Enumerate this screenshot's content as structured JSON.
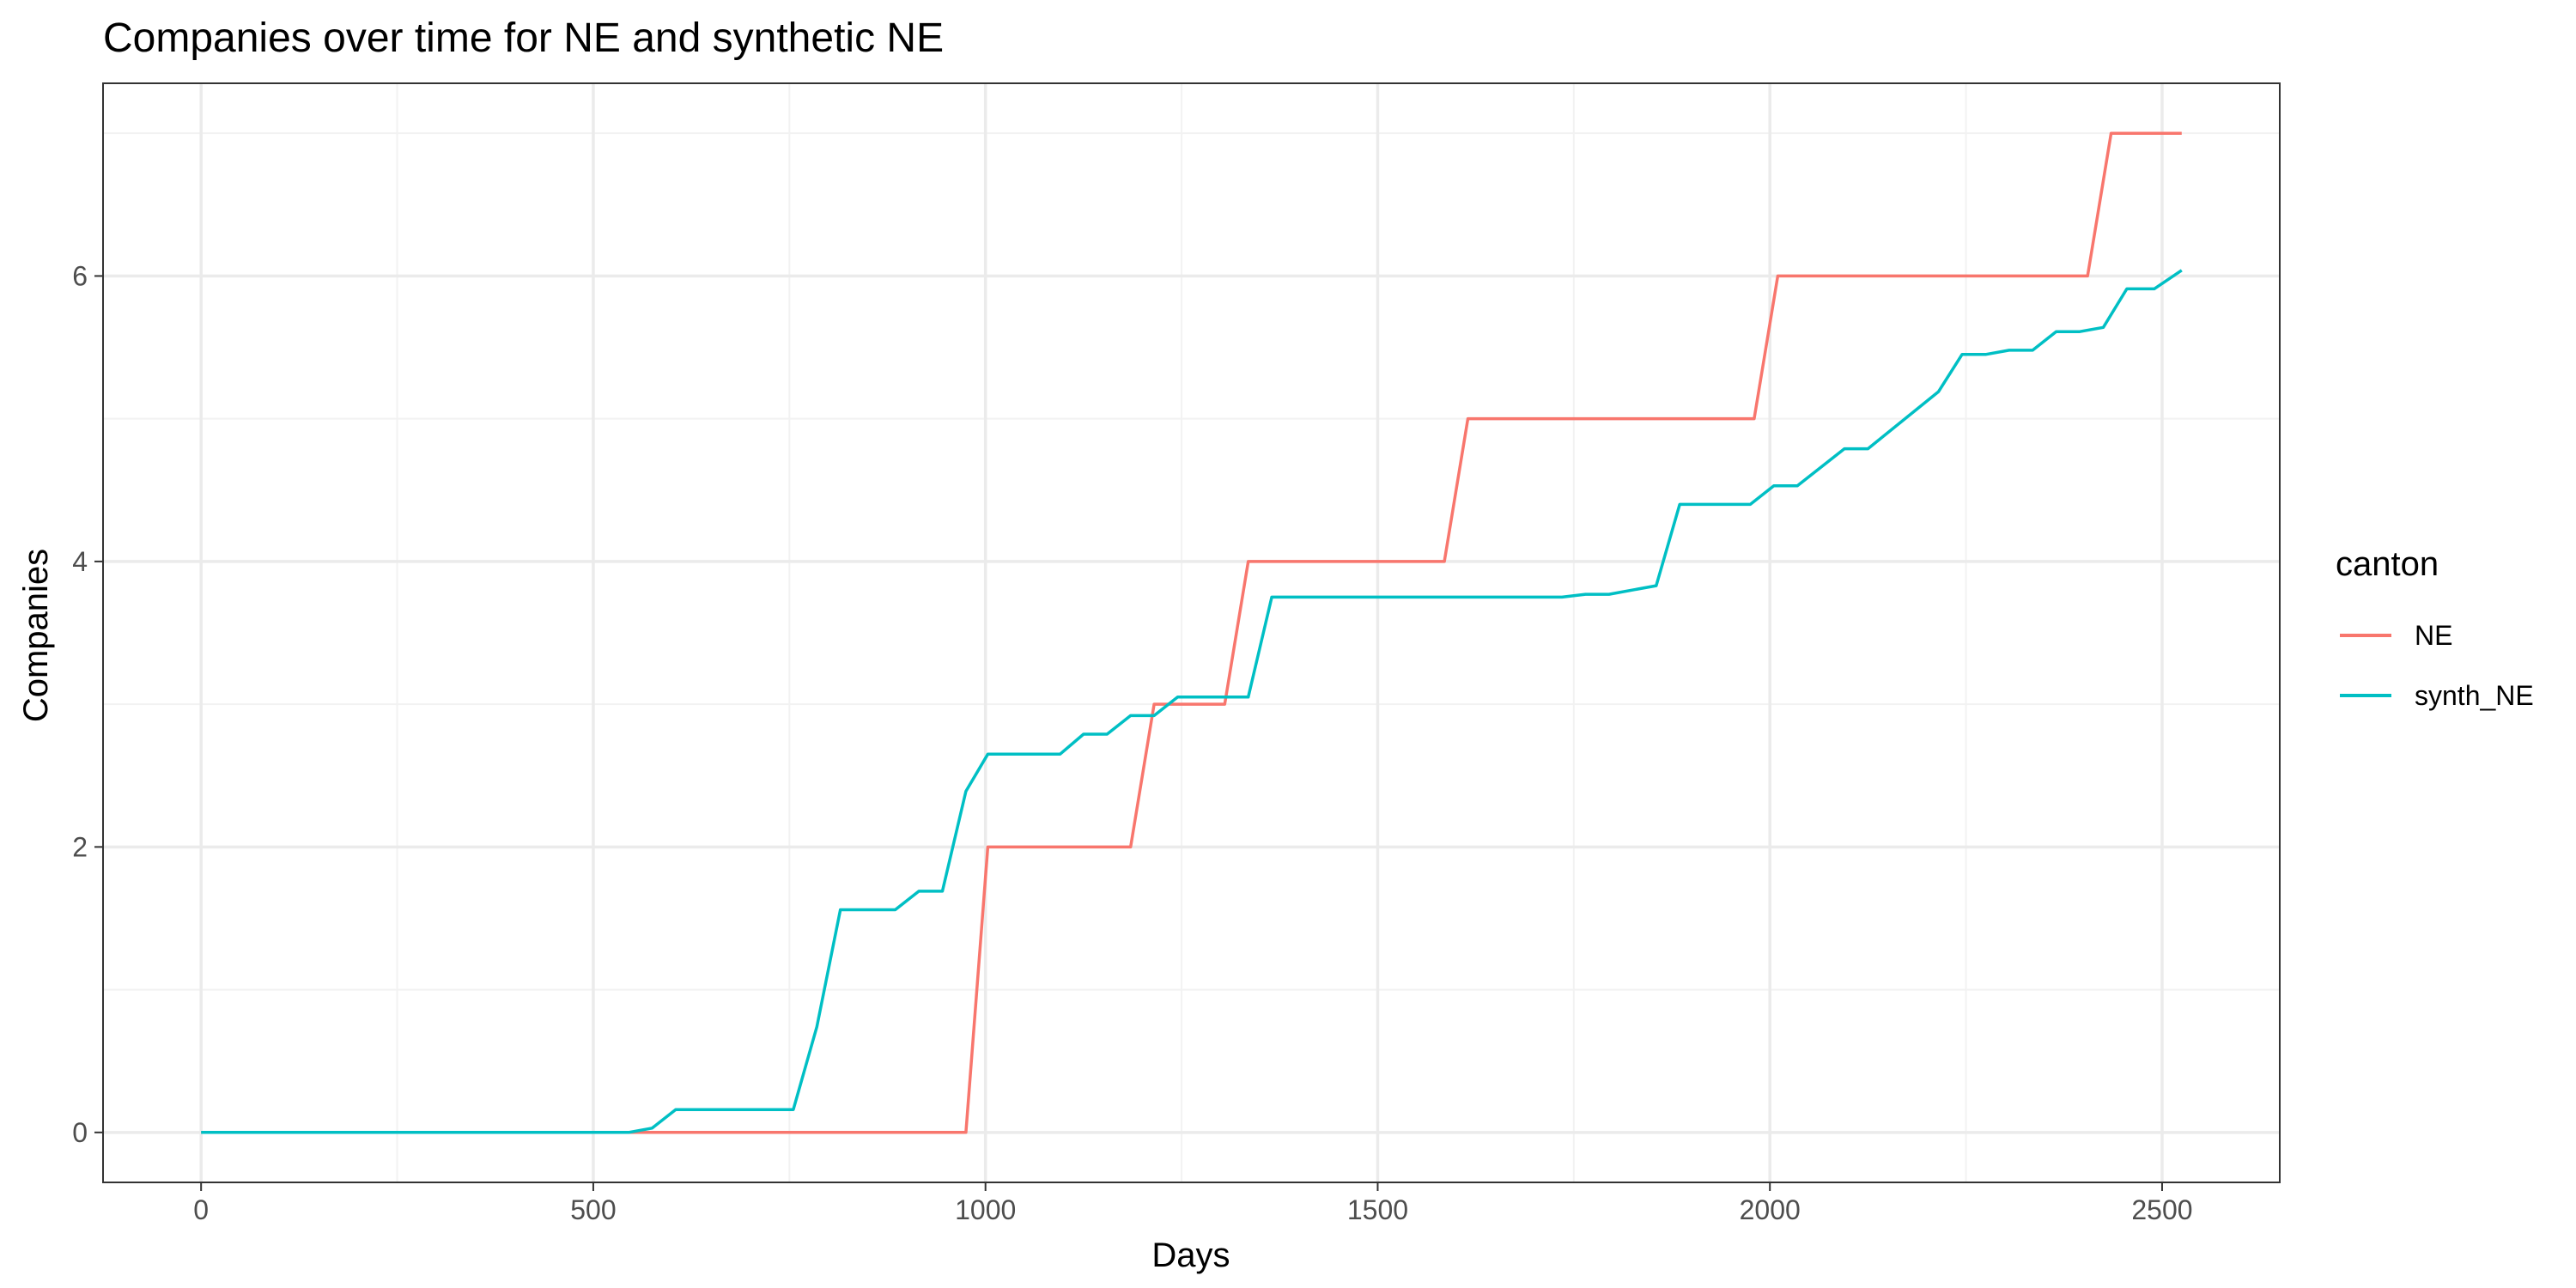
{
  "chart_data": {
    "type": "line",
    "title": "Companies over time for NE and synthetic NE",
    "xlabel": "Days",
    "ylabel": "Companies",
    "xlim": [
      -125,
      2650
    ],
    "ylim": [
      -0.35,
      7.35
    ],
    "x_ticks": [
      0,
      500,
      1000,
      1500,
      2000,
      2500
    ],
    "y_ticks": [
      0,
      2,
      4,
      6
    ],
    "grid": true,
    "legend": {
      "title": "canton",
      "placement": "right"
    },
    "series": [
      {
        "name": "NE",
        "color": "#F8766D",
        "points": [
          [
            0,
            0
          ],
          [
            975,
            0
          ],
          [
            1003,
            2
          ],
          [
            1185,
            2
          ],
          [
            1215,
            3
          ],
          [
            1305,
            3
          ],
          [
            1335,
            4
          ],
          [
            1585,
            4
          ],
          [
            1615,
            5
          ],
          [
            1980,
            5
          ],
          [
            2010,
            6
          ],
          [
            2405,
            6
          ],
          [
            2435,
            7
          ],
          [
            2525,
            7
          ]
        ]
      },
      {
        "name": "synth_NE",
        "color": "#00BFC4",
        "points": [
          [
            0,
            0
          ],
          [
            545,
            0
          ],
          [
            575,
            0.03
          ],
          [
            605,
            0.16
          ],
          [
            755,
            0.16
          ],
          [
            785,
            0.74
          ],
          [
            815,
            1.56
          ],
          [
            885,
            1.56
          ],
          [
            915,
            1.69
          ],
          [
            945,
            1.69
          ],
          [
            975,
            2.39
          ],
          [
            1003,
            2.65
          ],
          [
            1095,
            2.65
          ],
          [
            1125,
            2.79
          ],
          [
            1155,
            2.79
          ],
          [
            1185,
            2.92
          ],
          [
            1215,
            2.92
          ],
          [
            1245,
            3.05
          ],
          [
            1335,
            3.05
          ],
          [
            1365,
            3.75
          ],
          [
            1735,
            3.75
          ],
          [
            1765,
            3.77
          ],
          [
            1795,
            3.77
          ],
          [
            1855,
            3.83
          ],
          [
            1885,
            4.4
          ],
          [
            1975,
            4.4
          ],
          [
            2005,
            4.53
          ],
          [
            2035,
            4.53
          ],
          [
            2095,
            4.79
          ],
          [
            2125,
            4.79
          ],
          [
            2215,
            5.19
          ],
          [
            2245,
            5.45
          ],
          [
            2275,
            5.45
          ],
          [
            2305,
            5.48
          ],
          [
            2335,
            5.48
          ],
          [
            2365,
            5.61
          ],
          [
            2395,
            5.61
          ],
          [
            2425,
            5.64
          ],
          [
            2455,
            5.91
          ],
          [
            2490,
            5.91
          ],
          [
            2525,
            6.04
          ]
        ]
      }
    ]
  }
}
